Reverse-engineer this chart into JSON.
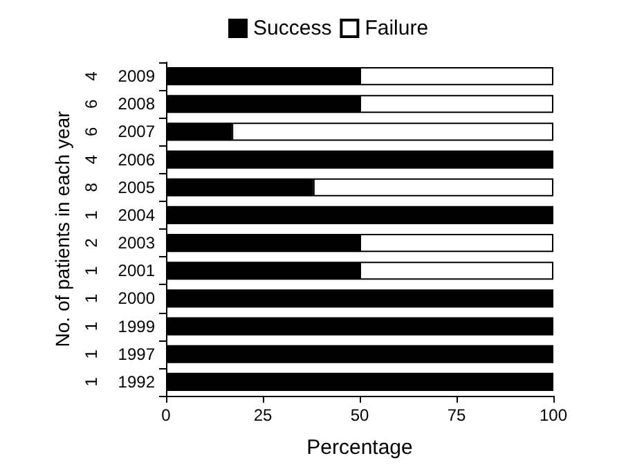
{
  "chart_data": {
    "type": "bar",
    "orientation": "horizontal",
    "stacked": true,
    "xlabel": "Percentage",
    "ylabel": "No. of patients in each year",
    "categories": [
      "2009",
      "2008",
      "2007",
      "2006",
      "2005",
      "2004",
      "2003",
      "2001",
      "2000",
      "1999",
      "1997",
      "1992"
    ],
    "series": [
      {
        "name": "Success",
        "color": "#000000",
        "values": [
          50,
          50,
          17,
          100,
          38,
          100,
          50,
          50,
          100,
          100,
          100,
          100
        ]
      },
      {
        "name": "Failure",
        "color": "#ffffff",
        "values": [
          50,
          50,
          83,
          0,
          62,
          0,
          50,
          50,
          0,
          0,
          0,
          0
        ]
      }
    ],
    "xlim": [
      0,
      100
    ],
    "xticks": [
      0,
      25,
      50,
      75,
      100
    ],
    "grid": false,
    "legend": "top",
    "annotations": [
      "4",
      "6",
      "6",
      "4",
      "8",
      "1",
      "2",
      "1",
      "1",
      "1",
      "1",
      "1"
    ]
  }
}
